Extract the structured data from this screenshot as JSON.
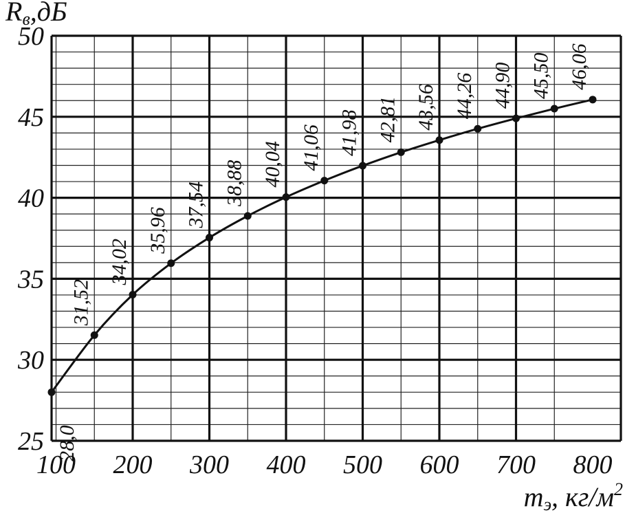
{
  "chart_data": {
    "type": "line",
    "x": [
      75,
      150,
      200,
      250,
      300,
      350,
      400,
      450,
      500,
      550,
      600,
      650,
      700,
      750,
      800
    ],
    "y": [
      28.0,
      31.52,
      34.02,
      35.96,
      37.54,
      38.88,
      40.04,
      41.06,
      41.98,
      42.81,
      43.56,
      44.26,
      44.9,
      45.5,
      46.06
    ],
    "point_labels": [
      "28,0",
      "31,52",
      "34,02",
      "35,96",
      "37,54",
      "38,88",
      "40,04",
      "41,06",
      "41,98",
      "42,81",
      "43,56",
      "44,26",
      "44,90",
      "45,50",
      "46,06"
    ],
    "x_tick_labels": [
      "100",
      "200",
      "300",
      "400",
      "500",
      "600",
      "700",
      "800"
    ],
    "y_tick_labels": [
      "25",
      "30",
      "35",
      "40",
      "45",
      "50"
    ],
    "ylabel": {
      "main": "R",
      "sub": "в",
      "unit": ",дБ"
    },
    "xlabel": {
      "main": "m",
      "sub": "э",
      "unit": ", кг/м",
      "sup": "2"
    },
    "xlim": [
      100,
      800
    ],
    "ylim": [
      25,
      50
    ],
    "grid": true
  }
}
